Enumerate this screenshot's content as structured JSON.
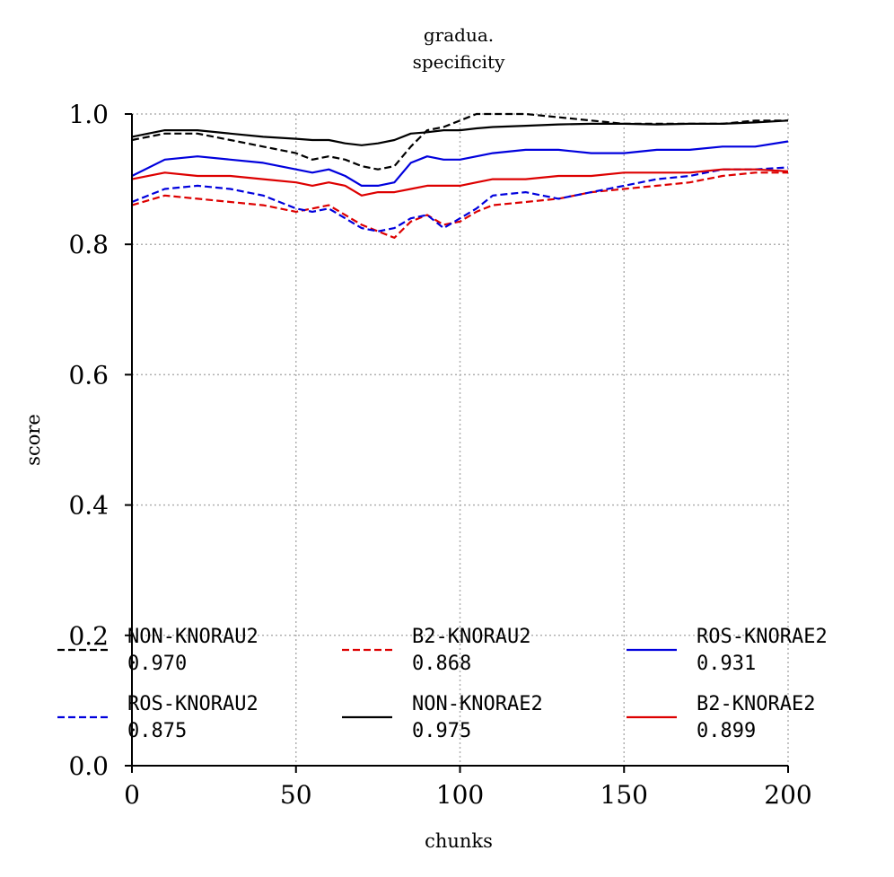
{
  "chart_data": {
    "type": "line",
    "title": "gradua.",
    "subtitle": "specificity",
    "xlabel": "chunks",
    "ylabel": "score",
    "xlim": [
      0,
      200
    ],
    "ylim": [
      0,
      1
    ],
    "xticks": [
      "0",
      "50",
      "100",
      "150",
      "200"
    ],
    "yticks": [
      "0.0",
      "0.2",
      "0.4",
      "0.6",
      "0.8",
      "1.0"
    ],
    "grid": true,
    "legend_position": "bottom",
    "x": [
      0,
      10,
      20,
      30,
      40,
      50,
      55,
      60,
      65,
      70,
      75,
      80,
      85,
      90,
      95,
      100,
      105,
      110,
      120,
      130,
      140,
      150,
      160,
      170,
      180,
      190,
      200
    ],
    "series": [
      {
        "name": "NON-KNORAU2",
        "value_label": "0.970",
        "color": "#000000",
        "dash": "dashed",
        "values": [
          0.96,
          0.97,
          0.97,
          0.96,
          0.95,
          0.94,
          0.93,
          0.935,
          0.93,
          0.92,
          0.915,
          0.92,
          0.95,
          0.975,
          0.98,
          0.99,
          1.0,
          1.0,
          1.0,
          0.995,
          0.99,
          0.985,
          0.985,
          0.985,
          0.985,
          0.99,
          0.99
        ]
      },
      {
        "name": "B2-KNORAU2",
        "value_label": "0.868",
        "color": "#dd0000",
        "dash": "dashed",
        "values": [
          0.86,
          0.875,
          0.87,
          0.865,
          0.86,
          0.85,
          0.855,
          0.86,
          0.845,
          0.83,
          0.82,
          0.81,
          0.835,
          0.845,
          0.83,
          0.835,
          0.85,
          0.86,
          0.865,
          0.87,
          0.88,
          0.885,
          0.89,
          0.895,
          0.905,
          0.91,
          0.91
        ]
      },
      {
        "name": "ROS-KNORAE2",
        "value_label": "0.931",
        "color": "#0000dd",
        "dash": "solid",
        "values": [
          0.905,
          0.93,
          0.935,
          0.93,
          0.925,
          0.915,
          0.91,
          0.915,
          0.905,
          0.89,
          0.89,
          0.895,
          0.925,
          0.935,
          0.93,
          0.93,
          0.935,
          0.94,
          0.945,
          0.945,
          0.94,
          0.94,
          0.945,
          0.945,
          0.95,
          0.95,
          0.958
        ]
      },
      {
        "name": "ROS-KNORAU2",
        "value_label": "0.875",
        "color": "#0000dd",
        "dash": "dashed",
        "values": [
          0.865,
          0.885,
          0.89,
          0.885,
          0.875,
          0.855,
          0.85,
          0.855,
          0.84,
          0.825,
          0.82,
          0.825,
          0.84,
          0.845,
          0.825,
          0.84,
          0.855,
          0.875,
          0.88,
          0.87,
          0.88,
          0.89,
          0.9,
          0.905,
          0.915,
          0.915,
          0.918
        ]
      },
      {
        "name": "NON-KNORAE2",
        "value_label": "0.975",
        "color": "#000000",
        "dash": "solid",
        "values": [
          0.965,
          0.975,
          0.975,
          0.97,
          0.965,
          0.962,
          0.96,
          0.96,
          0.955,
          0.952,
          0.955,
          0.96,
          0.97,
          0.972,
          0.975,
          0.975,
          0.978,
          0.98,
          0.982,
          0.984,
          0.985,
          0.985,
          0.984,
          0.985,
          0.985,
          0.987,
          0.99
        ]
      },
      {
        "name": "B2-KNORAE2",
        "value_label": "0.899",
        "color": "#dd0000",
        "dash": "solid",
        "values": [
          0.9,
          0.91,
          0.905,
          0.905,
          0.9,
          0.895,
          0.89,
          0.895,
          0.89,
          0.875,
          0.88,
          0.88,
          0.885,
          0.89,
          0.89,
          0.89,
          0.895,
          0.9,
          0.9,
          0.905,
          0.905,
          0.91,
          0.91,
          0.91,
          0.915,
          0.915,
          0.912
        ]
      }
    ]
  }
}
